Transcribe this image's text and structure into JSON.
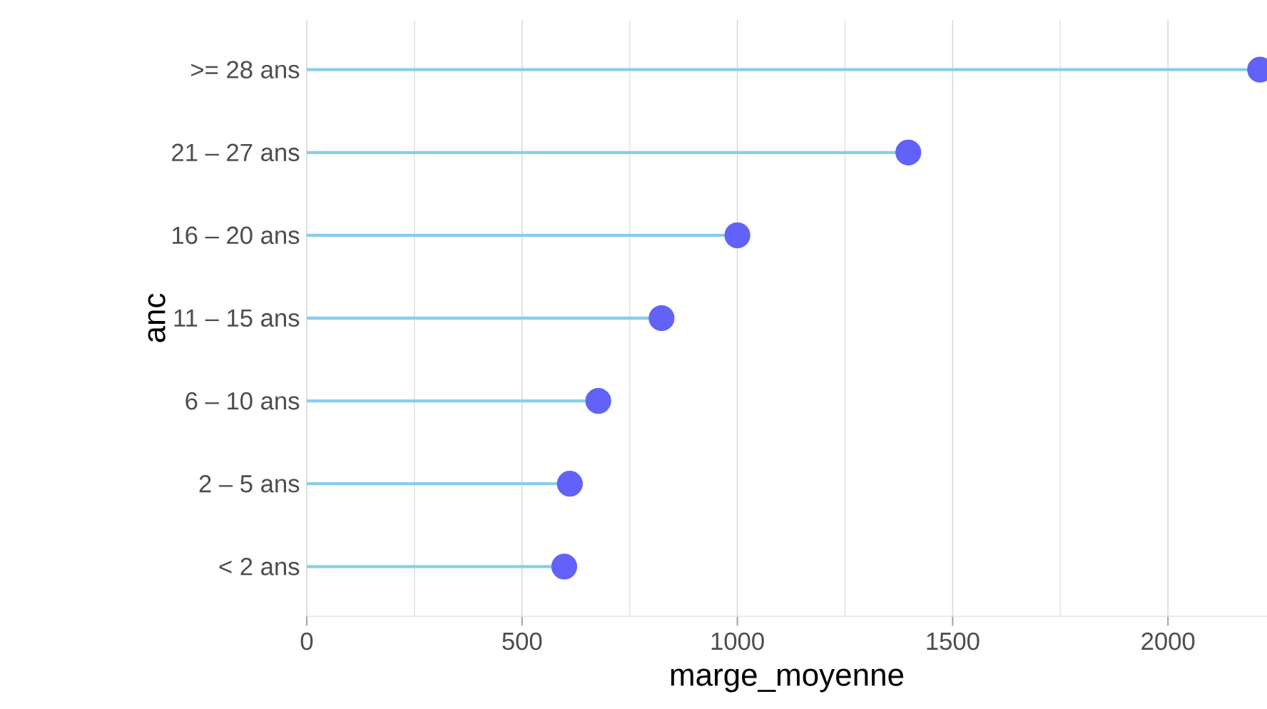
{
  "chart_data": {
    "type": "lollipop",
    "orientation": "horizontal",
    "xlabel": "marge_moyenne",
    "ylabel": "anc",
    "categories": [
      ">= 28 ans",
      "21 – 27 ans",
      "16 – 20 ans",
      "11 – 15 ans",
      "6 – 10 ans",
      "2 – 5 ans",
      "< 2 ans"
    ],
    "series": [
      {
        "color": "#6262f8",
        "values": [
          2214,
          1397,
          1000,
          824,
          677,
          611,
          598
        ]
      }
    ],
    "xlim": [
      0,
      2230
    ],
    "xticks": [
      0,
      {
        "value": 250,
        "label": null
      },
      500,
      {
        "value": 750,
        "label": null
      },
      1000,
      {
        "value": 1250,
        "label": null
      },
      1500,
      {
        "value": 1750,
        "label": null
      },
      2000
    ],
    "grid": "x",
    "marker": "circle"
  }
}
